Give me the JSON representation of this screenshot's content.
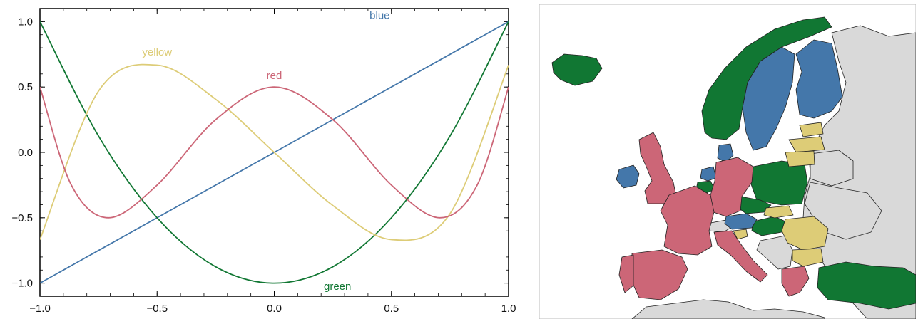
{
  "chart_data": [
    {
      "type": "line",
      "title": "",
      "xlabel": "",
      "ylabel": "",
      "xlim": [
        -1.0,
        1.0
      ],
      "ylim": [
        -1.1,
        1.1
      ],
      "grid": false,
      "x_ticks": [
        -1.0,
        -0.5,
        0.0,
        0.5,
        1.0
      ],
      "x_tick_labels": [
        "−1.0",
        "−0.5",
        "0.0",
        "0.5",
        "1.0"
      ],
      "y_ticks": [
        -1.0,
        -0.5,
        0.0,
        0.5,
        1.0
      ],
      "y_tick_labels": [
        "−1.0",
        "−0.5",
        "0.0",
        "0.5",
        "1.0"
      ],
      "series": [
        {
          "name": "blue",
          "color": "#4477aa",
          "x": [
            -1.0,
            0.0,
            1.0
          ],
          "y": [
            -1.0,
            0.0,
            1.0
          ],
          "label_at": [
            0.45,
            1.02
          ]
        },
        {
          "name": "green",
          "color": "#117733",
          "x": [
            -1.0,
            -0.75,
            -0.5,
            -0.25,
            0.0,
            0.25,
            0.5,
            0.75,
            1.0
          ],
          "y": [
            1.0,
            0.125,
            -0.5,
            -0.875,
            -1.0,
            -0.875,
            -0.5,
            0.125,
            1.0
          ],
          "label_at": [
            0.27,
            -1.05
          ]
        },
        {
          "name": "yellow",
          "color": "#ddcc77",
          "x": [
            -1.0,
            -0.75,
            -0.5,
            -0.25,
            0.0,
            0.25,
            0.5,
            0.75,
            1.0
          ],
          "y": [
            -0.667,
            0.469,
            0.667,
            0.406,
            0.0,
            -0.406,
            -0.667,
            -0.469,
            0.667
          ],
          "label_at": [
            -0.5,
            0.74
          ]
        },
        {
          "name": "red",
          "color": "#cc6677",
          "x": [
            -1.0,
            -0.866,
            -0.707,
            -0.5,
            -0.25,
            0.0,
            0.25,
            0.5,
            0.707,
            0.866,
            1.0
          ],
          "y": [
            0.5,
            -0.25,
            -0.5,
            -0.25,
            0.25,
            0.5,
            0.25,
            -0.25,
            -0.5,
            -0.25,
            0.5
          ],
          "label_at": [
            0.0,
            0.56
          ]
        }
      ]
    },
    {
      "type": "map",
      "title": "",
      "region": "Europe",
      "color_groups": {
        "blue": "#4477aa",
        "green": "#117733",
        "yellow": "#ddcc77",
        "red": "#cc6677",
        "gray": "#d9d9d9"
      },
      "countries": [
        {
          "name": "Iceland",
          "group": "green"
        },
        {
          "name": "Norway",
          "group": "green"
        },
        {
          "name": "Sweden",
          "group": "blue"
        },
        {
          "name": "Finland",
          "group": "blue"
        },
        {
          "name": "Estonia",
          "group": "yellow"
        },
        {
          "name": "Latvia",
          "group": "yellow"
        },
        {
          "name": "Lithuania",
          "group": "yellow"
        },
        {
          "name": "Ireland",
          "group": "blue"
        },
        {
          "name": "United Kingdom",
          "group": "red"
        },
        {
          "name": "Denmark",
          "group": "blue"
        },
        {
          "name": "Netherlands",
          "group": "blue"
        },
        {
          "name": "Belgium",
          "group": "green"
        },
        {
          "name": "Germany",
          "group": "red"
        },
        {
          "name": "Poland",
          "group": "green"
        },
        {
          "name": "France",
          "group": "red"
        },
        {
          "name": "Czechia",
          "group": "green"
        },
        {
          "name": "Slovakia",
          "group": "yellow"
        },
        {
          "name": "Austria",
          "group": "blue"
        },
        {
          "name": "Hungary",
          "group": "green"
        },
        {
          "name": "Slovenia",
          "group": "yellow"
        },
        {
          "name": "Romania",
          "group": "yellow"
        },
        {
          "name": "Bulgaria",
          "group": "yellow"
        },
        {
          "name": "Italy",
          "group": "red"
        },
        {
          "name": "Spain",
          "group": "red"
        },
        {
          "name": "Portugal",
          "group": "red"
        },
        {
          "name": "Greece",
          "group": "red"
        },
        {
          "name": "Turkey",
          "group": "green"
        },
        {
          "name": "Russia",
          "group": "gray"
        },
        {
          "name": "Belarus",
          "group": "gray"
        },
        {
          "name": "Ukraine",
          "group": "gray"
        },
        {
          "name": "Switzerland",
          "group": "gray"
        },
        {
          "name": "Balkans",
          "group": "gray"
        },
        {
          "name": "North Africa",
          "group": "gray"
        }
      ]
    }
  ]
}
